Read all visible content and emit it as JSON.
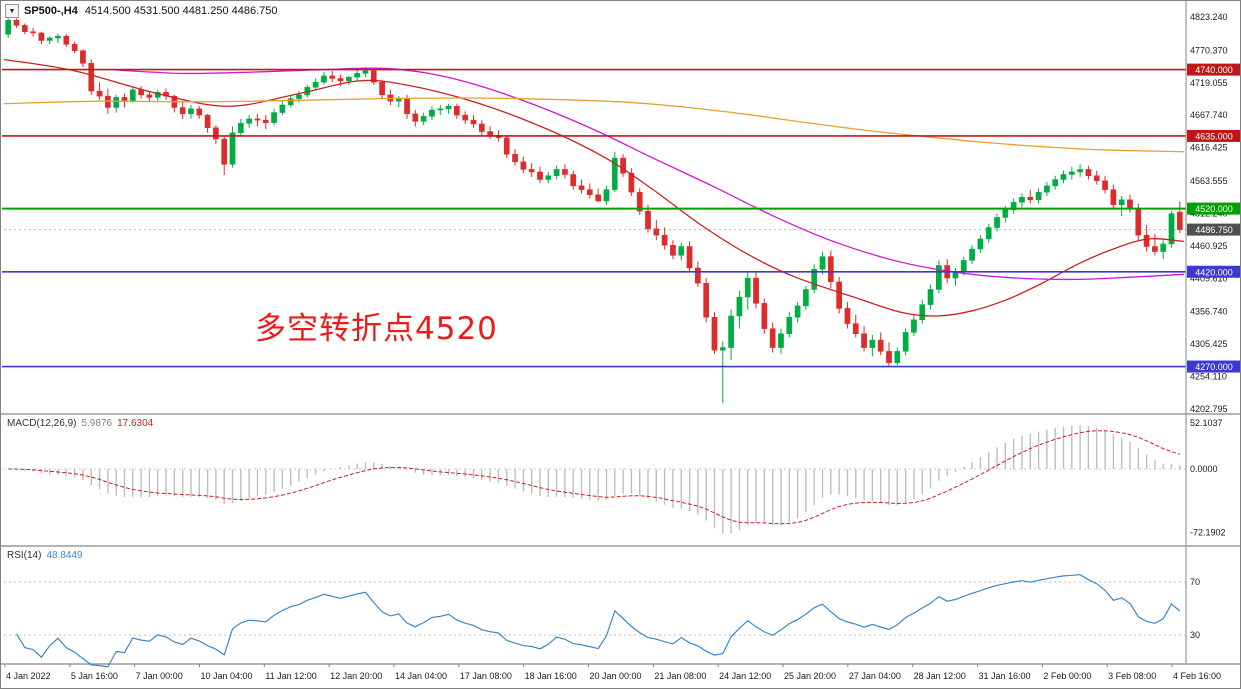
{
  "window": {
    "symbol_title": "SP500-,H4",
    "ohlc_title": "4514.500 4531.500 4481.250 4486.750",
    "dropdown_glyph": "▼"
  },
  "annotation": {
    "text": "多空转折点4520",
    "color": "#ee1a1a"
  },
  "colors": {
    "bull": "#00ad45",
    "bear": "#dd2c2c",
    "background": "#ffffff",
    "axis_text": "#1a1a1a",
    "separator": "#9a9a9a",
    "current_price_badge": "#4f4f4f"
  },
  "chart_data": {
    "type": "candlestick",
    "symbol": "SP500-,H4",
    "timeframe": "H4",
    "ohlc_display": {
      "open": "4514.500",
      "high": "4531.500",
      "low": "4481.250",
      "close": "4486.750"
    },
    "candles": [
      [
        4796,
        4823,
        4790,
        4818
      ],
      [
        4818,
        4821,
        4806,
        4810
      ],
      [
        4810,
        4813,
        4796,
        4800
      ],
      [
        4800,
        4806,
        4792,
        4798
      ],
      [
        4798,
        4800,
        4780,
        4786
      ],
      [
        4786,
        4793,
        4780,
        4790
      ],
      [
        4790,
        4797,
        4782,
        4793
      ],
      [
        4793,
        4796,
        4776,
        4780
      ],
      [
        4780,
        4784,
        4766,
        4770
      ],
      [
        4770,
        4772,
        4744,
        4750
      ],
      [
        4750,
        4756,
        4700,
        4706
      ],
      [
        4706,
        4720,
        4692,
        4698
      ],
      [
        4698,
        4710,
        4670,
        4680
      ],
      [
        4680,
        4700,
        4672,
        4696
      ],
      [
        4696,
        4702,
        4680,
        4690
      ],
      [
        4690,
        4712,
        4688,
        4708
      ],
      [
        4708,
        4714,
        4694,
        4700
      ],
      [
        4700,
        4706,
        4688,
        4696
      ],
      [
        4696,
        4708,
        4690,
        4704
      ],
      [
        4704,
        4710,
        4692,
        4698
      ],
      [
        4698,
        4700,
        4672,
        4680
      ],
      [
        4680,
        4690,
        4662,
        4670
      ],
      [
        4670,
        4684,
        4662,
        4678
      ],
      [
        4678,
        4682,
        4662,
        4668
      ],
      [
        4668,
        4670,
        4640,
        4648
      ],
      [
        4648,
        4652,
        4622,
        4630
      ],
      [
        4630,
        4634,
        4573,
        4590
      ],
      [
        4590,
        4650,
        4585,
        4640
      ],
      [
        4640,
        4662,
        4635,
        4655
      ],
      [
        4655,
        4668,
        4648,
        4662
      ],
      [
        4662,
        4670,
        4650,
        4660
      ],
      [
        4660,
        4668,
        4646,
        4656
      ],
      [
        4656,
        4678,
        4652,
        4672
      ],
      [
        4672,
        4690,
        4668,
        4684
      ],
      [
        4684,
        4700,
        4680,
        4694
      ],
      [
        4694,
        4706,
        4688,
        4700
      ],
      [
        4700,
        4716,
        4696,
        4712
      ],
      [
        4712,
        4726,
        4708,
        4720
      ],
      [
        4720,
        4736,
        4716,
        4730
      ],
      [
        4730,
        4738,
        4720,
        4726
      ],
      [
        4726,
        4732,
        4714,
        4722
      ],
      [
        4722,
        4730,
        4716,
        4728
      ],
      [
        4728,
        4740,
        4722,
        4734
      ],
      [
        4734,
        4744,
        4728,
        4738
      ],
      [
        4738,
        4740,
        4716,
        4720
      ],
      [
        4720,
        4724,
        4694,
        4700
      ],
      [
        4700,
        4708,
        4684,
        4690
      ],
      [
        4690,
        4698,
        4680,
        4694
      ],
      [
        4694,
        4700,
        4662,
        4670
      ],
      [
        4670,
        4676,
        4650,
        4658
      ],
      [
        4658,
        4672,
        4652,
        4666
      ],
      [
        4666,
        4682,
        4660,
        4676
      ],
      [
        4676,
        4684,
        4668,
        4678
      ],
      [
        4678,
        4686,
        4670,
        4682
      ],
      [
        4682,
        4686,
        4662,
        4668
      ],
      [
        4668,
        4674,
        4654,
        4660
      ],
      [
        4660,
        4668,
        4648,
        4654
      ],
      [
        4654,
        4660,
        4636,
        4642
      ],
      [
        4642,
        4650,
        4630,
        4636
      ],
      [
        4636,
        4644,
        4626,
        4632
      ],
      [
        4632,
        4636,
        4600,
        4606
      ],
      [
        4606,
        4614,
        4588,
        4594
      ],
      [
        4594,
        4602,
        4576,
        4582
      ],
      [
        4582,
        4592,
        4570,
        4578
      ],
      [
        4578,
        4586,
        4560,
        4566
      ],
      [
        4566,
        4578,
        4560,
        4572
      ],
      [
        4572,
        4588,
        4566,
        4582
      ],
      [
        4582,
        4590,
        4568,
        4574
      ],
      [
        4574,
        4580,
        4550,
        4556
      ],
      [
        4556,
        4566,
        4544,
        4550
      ],
      [
        4550,
        4560,
        4536,
        4542
      ],
      [
        4542,
        4552,
        4530,
        4532
      ],
      [
        4532,
        4556,
        4526,
        4550
      ],
      [
        4550,
        4610,
        4546,
        4600
      ],
      [
        4600,
        4606,
        4570,
        4576
      ],
      [
        4576,
        4584,
        4540,
        4546
      ],
      [
        4546,
        4552,
        4510,
        4516
      ],
      [
        4516,
        4526,
        4482,
        4488
      ],
      [
        4488,
        4502,
        4470,
        4478
      ],
      [
        4478,
        4490,
        4455,
        4462
      ],
      [
        4462,
        4470,
        4440,
        4446
      ],
      [
        4446,
        4466,
        4438,
        4460
      ],
      [
        4460,
        4468,
        4420,
        4426
      ],
      [
        4426,
        4436,
        4396,
        4402
      ],
      [
        4402,
        4410,
        4340,
        4348
      ],
      [
        4348,
        4356,
        4290,
        4296
      ],
      [
        4296,
        4310,
        4212,
        4300
      ],
      [
        4300,
        4360,
        4280,
        4350
      ],
      [
        4350,
        4390,
        4330,
        4380
      ],
      [
        4380,
        4420,
        4360,
        4410
      ],
      [
        4410,
        4420,
        4362,
        4370
      ],
      [
        4370,
        4378,
        4322,
        4330
      ],
      [
        4330,
        4340,
        4292,
        4300
      ],
      [
        4300,
        4330,
        4290,
        4322
      ],
      [
        4322,
        4356,
        4316,
        4348
      ],
      [
        4348,
        4372,
        4340,
        4366
      ],
      [
        4366,
        4398,
        4360,
        4392
      ],
      [
        4392,
        4432,
        4386,
        4424
      ],
      [
        4424,
        4452,
        4416,
        4444
      ],
      [
        4444,
        4454,
        4394,
        4404
      ],
      [
        4404,
        4412,
        4354,
        4362
      ],
      [
        4362,
        4372,
        4330,
        4338
      ],
      [
        4338,
        4352,
        4316,
        4322
      ],
      [
        4322,
        4334,
        4294,
        4300
      ],
      [
        4300,
        4320,
        4286,
        4312
      ],
      [
        4312,
        4324,
        4288,
        4294
      ],
      [
        4294,
        4308,
        4270,
        4276
      ],
      [
        4276,
        4300,
        4272,
        4294
      ],
      [
        4294,
        4330,
        4288,
        4324
      ],
      [
        4324,
        4352,
        4318,
        4344
      ],
      [
        4344,
        4376,
        4338,
        4368
      ],
      [
        4368,
        4400,
        4360,
        4392
      ],
      [
        4392,
        4438,
        4386,
        4430
      ],
      [
        4430,
        4440,
        4402,
        4410
      ],
      [
        4410,
        4426,
        4398,
        4420
      ],
      [
        4420,
        4444,
        4414,
        4438
      ],
      [
        4438,
        4462,
        4432,
        4456
      ],
      [
        4456,
        4478,
        4450,
        4472
      ],
      [
        4472,
        4496,
        4466,
        4490
      ],
      [
        4490,
        4512,
        4484,
        4506
      ],
      [
        4506,
        4524,
        4498,
        4518
      ],
      [
        4518,
        4536,
        4512,
        4530
      ],
      [
        4530,
        4544,
        4522,
        4538
      ],
      [
        4538,
        4550,
        4528,
        4534
      ],
      [
        4534,
        4552,
        4528,
        4546
      ],
      [
        4546,
        4562,
        4540,
        4556
      ],
      [
        4556,
        4572,
        4550,
        4566
      ],
      [
        4566,
        4580,
        4560,
        4574
      ],
      [
        4574,
        4586,
        4566,
        4578
      ],
      [
        4578,
        4590,
        4570,
        4582
      ],
      [
        4582,
        4588,
        4566,
        4572
      ],
      [
        4572,
        4580,
        4558,
        4564
      ],
      [
        4564,
        4572,
        4544,
        4550
      ],
      [
        4550,
        4558,
        4520,
        4526
      ],
      [
        4526,
        4540,
        4508,
        4534
      ],
      [
        4534,
        4542,
        4514,
        4520
      ],
      [
        4520,
        4528,
        4470,
        4478
      ],
      [
        4478,
        4494,
        4452,
        4460
      ],
      [
        4460,
        4480,
        4446,
        4452
      ],
      [
        4452,
        4470,
        4440,
        4464
      ],
      [
        4464,
        4516,
        4458,
        4512
      ],
      [
        4514.5,
        4531.5,
        4481.25,
        4486.75
      ]
    ],
    "y_axis_ticks": [
      {
        "label": "4823.240",
        "value": 4823.24
      },
      {
        "label": "4770.370",
        "value": 4770.37
      },
      {
        "label": "4719.055",
        "value": 4719.055
      },
      {
        "label": "4667.740",
        "value": 4667.74
      },
      {
        "label": "4616.425",
        "value": 4616.425
      },
      {
        "label": "4563.555",
        "value": 4563.555
      },
      {
        "label": "4512.240",
        "value": 4512.24
      },
      {
        "label": "4460.925",
        "value": 4460.925
      },
      {
        "label": "4409.610",
        "value": 4409.61
      },
      {
        "label": "4356.740",
        "value": 4356.74
      },
      {
        "label": "4305.425",
        "value": 4305.425
      },
      {
        "label": "4254.110",
        "value": 4254.11
      },
      {
        "label": "4202.795",
        "value": 4202.795
      }
    ],
    "horizontal_lines": [
      {
        "value": 4740,
        "label": "4740.000",
        "color": "#c01818",
        "width": 1.6
      },
      {
        "value": 4635,
        "label": "4635.000",
        "color": "#c01818",
        "width": 1.6
      },
      {
        "value": 4520,
        "label": "4520.000",
        "color": "#00a000",
        "width": 2
      },
      {
        "value": 4420,
        "label": "4420.000",
        "color": "#3a3ad0",
        "width": 1.6
      },
      {
        "value": 4270,
        "label": "4270.000",
        "color": "#3a3ad0",
        "width": 1.6
      }
    ],
    "current_price": {
      "value": 4486.75,
      "label": "4486.750"
    },
    "moving_averages": [
      {
        "name": "ma-fast",
        "color": "#cc2020",
        "points": [
          [
            0.0,
            4756
          ],
          [
            0.06,
            4738
          ],
          [
            0.13,
            4702
          ],
          [
            0.19,
            4682
          ],
          [
            0.25,
            4702
          ],
          [
            0.3,
            4722
          ],
          [
            0.34,
            4716
          ],
          [
            0.4,
            4688
          ],
          [
            0.46,
            4646
          ],
          [
            0.51,
            4600
          ],
          [
            0.55,
            4550
          ],
          [
            0.59,
            4495
          ],
          [
            0.63,
            4448
          ],
          [
            0.67,
            4412
          ],
          [
            0.72,
            4380
          ],
          [
            0.76,
            4356
          ],
          [
            0.79,
            4350
          ],
          [
            0.82,
            4358
          ],
          [
            0.85,
            4376
          ],
          [
            0.88,
            4402
          ],
          [
            0.91,
            4432
          ],
          [
            0.94,
            4456
          ],
          [
            0.97,
            4472
          ],
          [
            1.0,
            4468
          ]
        ]
      },
      {
        "name": "ma-mid",
        "color": "#d316d3",
        "points": [
          [
            0.09,
            4740
          ],
          [
            0.15,
            4734
          ],
          [
            0.21,
            4736
          ],
          [
            0.27,
            4740
          ],
          [
            0.32,
            4742
          ],
          [
            0.36,
            4734
          ],
          [
            0.4,
            4716
          ],
          [
            0.45,
            4684
          ],
          [
            0.5,
            4645
          ],
          [
            0.55,
            4600
          ],
          [
            0.6,
            4556
          ],
          [
            0.65,
            4510
          ],
          [
            0.7,
            4470
          ],
          [
            0.75,
            4440
          ],
          [
            0.79,
            4424
          ],
          [
            0.83,
            4414
          ],
          [
            0.87,
            4409
          ],
          [
            0.91,
            4408
          ],
          [
            0.95,
            4411
          ],
          [
            1.0,
            4416
          ]
        ]
      },
      {
        "name": "ma-slow",
        "color": "#e8a030",
        "points": [
          [
            0.0,
            4686
          ],
          [
            0.08,
            4690
          ],
          [
            0.16,
            4689
          ],
          [
            0.24,
            4691
          ],
          [
            0.32,
            4694
          ],
          [
            0.4,
            4695
          ],
          [
            0.48,
            4692
          ],
          [
            0.53,
            4688
          ],
          [
            0.58,
            4680
          ],
          [
            0.63,
            4669
          ],
          [
            0.68,
            4656
          ],
          [
            0.73,
            4644
          ],
          [
            0.78,
            4634
          ],
          [
            0.83,
            4625
          ],
          [
            0.88,
            4618
          ],
          [
            0.93,
            4613
          ],
          [
            1.0,
            4610
          ]
        ]
      }
    ],
    "macd": {
      "label": "MACD(12,26,9)",
      "value_main": "5.9876",
      "value_signal": "17.6304",
      "params": [
        12,
        26,
        9
      ],
      "axis_labels": [
        {
          "label": "52.1037",
          "value": 52.1037
        },
        {
          "label": "0.0000",
          "value": 0
        },
        {
          "label": "-72.1902",
          "value": -72.1902
        }
      ],
      "histogram_color": "#bdbdbd",
      "signal_color": "#cf1f1f"
    },
    "rsi": {
      "label": "RSI(14)",
      "value_text": "48.8449",
      "value": 48.8449,
      "period": 14,
      "levels": [
        70,
        30
      ],
      "axis_labels": [
        {
          "label": "70",
          "value": 70
        },
        {
          "label": "30",
          "value": 30
        }
      ],
      "line_color": "#3c87c9"
    },
    "x_axis": {
      "labels": [
        "4 Jan 2022",
        "5 Jan 16:00",
        "7 Jan 00:00",
        "10 Jan 04:00",
        "11 Jan 12:00",
        "12 Jan 20:00",
        "14 Jan 04:00",
        "17 Jan 08:00",
        "18 Jan 16:00",
        "20 Jan 00:00",
        "21 Jan 08:00",
        "24 Jan 12:00",
        "25 Jan 20:00",
        "27 Jan 04:00",
        "28 Jan 12:00",
        "31 Jan 16:00",
        "2 Feb 00:00",
        "3 Feb 08:00",
        "4 Feb 16:00"
      ]
    }
  }
}
